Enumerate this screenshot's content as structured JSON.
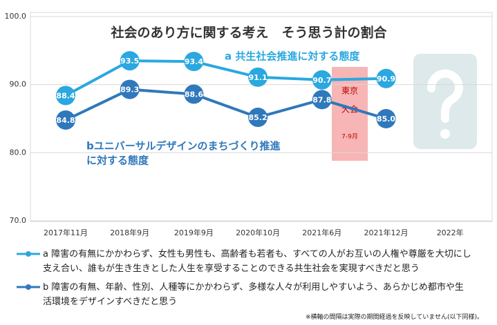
{
  "chart_data": {
    "type": "line",
    "title": "社会のあり方に関する考え　そう思う計の割合",
    "categories": [
      "2017年11月",
      "2018年9月",
      "2019年9月",
      "2020年10月",
      "2021年6月",
      "2021年12月",
      "2022年"
    ],
    "series": [
      {
        "name": "a 障害の有無にかかわらず、女性も男性も、高齢者も若者も、すべての人がお互いの人権や尊厳を大切にし支え合い、誰もが生き生きとした人生を享受することのできる共生社会を実現すべきだと思う",
        "color": "#2aa8df",
        "values": [
          88.4,
          93.5,
          93.4,
          91.1,
          90.7,
          90.9,
          null
        ],
        "value_labels": [
          "88.4",
          "93.5",
          "93.4",
          "91.1",
          "90.7",
          "90.9",
          null
        ]
      },
      {
        "name": "b 障害の有無、年齢、性別、人種等にかかわらず、多様な人々が利用しやすいよう、あらかじめ都市や生活環境をデザインすべきだと思う",
        "color": "#2f78bb",
        "values": [
          84.8,
          89.3,
          88.6,
          85.2,
          87.8,
          85.0,
          null
        ],
        "value_labels": [
          "84.8",
          "89.3",
          "88.6",
          "85.2",
          "87.8",
          "85.0",
          null
        ]
      }
    ],
    "ylim": [
      70,
      100
    ],
    "yticks": [
      {
        "value": 70,
        "label": "70.0"
      },
      {
        "value": 80,
        "label": "80.0"
      },
      {
        "value": 90,
        "label": "90.0"
      },
      {
        "value": 100,
        "label": "100.0"
      }
    ],
    "grid": true,
    "annotations": {
      "series_a": "a 共生社会推進に対する態度",
      "series_b": [
        "bユニバーサルデザインのまちづくり推進",
        "に対する態度"
      ],
      "event": [
        "東京",
        "大会"
      ],
      "event_period": "7-9月",
      "footnote": "※横軸の間隔は実際の期間経過を反映していません(以下同様)。"
    }
  }
}
